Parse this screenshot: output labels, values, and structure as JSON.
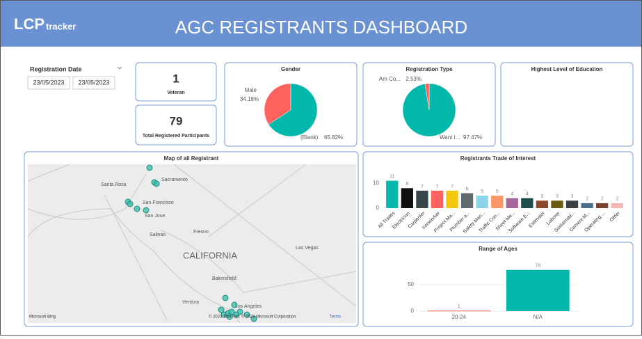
{
  "header": {
    "logo_main": "LCP",
    "logo_sub": "tracker",
    "title": "AGC REGISTRANTS DASHBOARD"
  },
  "filter": {
    "label": "Registration Date",
    "start": "23/05/2023",
    "end": "23/05/2023"
  },
  "cards": [
    {
      "value": "1",
      "label": "Veteran"
    },
    {
      "value": "79",
      "label": "Total Registered Participants"
    }
  ],
  "education": {
    "title": "Highest Level of Education"
  },
  "map": {
    "title": "Map of all Registrant",
    "labels": [
      "Santa Rosa",
      "Sacramento",
      "San Francisco",
      "San Jose",
      "Fresno",
      "Salinas",
      "CALIFORNIA",
      "Las Vegas",
      "Bakersfield",
      "Ventura",
      "Los Angeles"
    ],
    "attribution": "Microsoft Bing",
    "copyright": "© 2023 TomTom, © 2023 Microsoft Corporation",
    "terms": "Terms"
  },
  "chart_data": [
    {
      "type": "pie",
      "title": "Gender",
      "categories": [
        "(Blank)",
        "Male"
      ],
      "values": [
        65.82,
        34.18
      ],
      "value_labels": [
        "65.82%",
        "34.18%"
      ],
      "colors": [
        "#01b8aa",
        "#fd625e"
      ]
    },
    {
      "type": "pie",
      "title": "Registration Type",
      "categories": [
        "Want I...",
        "Am Co..."
      ],
      "values": [
        97.47,
        2.53
      ],
      "value_labels": [
        "97.47%",
        "2.53%"
      ],
      "colors": [
        "#01b8aa",
        "#fd625e"
      ]
    },
    {
      "type": "bar",
      "title": "Registrants Trade of Interest",
      "categories": [
        "All Trades",
        "Electrician",
        "Carpenter",
        "Ironworker",
        "Project Ma...",
        "Plumber a...",
        "Safety Man...",
        "Traffic Con...",
        "Sheet Me...",
        "Software E...",
        "Estimator",
        "Laborer",
        "Sustainabl...",
        "Cement M...",
        "Operating ...",
        "Other"
      ],
      "values": [
        11,
        8,
        7,
        7,
        7,
        6,
        5,
        5,
        4,
        4,
        3,
        3,
        3,
        2,
        2,
        2
      ],
      "colors": [
        "#01b8aa",
        "#111111",
        "#374649",
        "#fd625e",
        "#f2c80f",
        "#5f6b6d",
        "#8ad4eb",
        "#fe9666",
        "#a66999",
        "#1c4e4f",
        "#8a4a2b",
        "#6b5a10",
        "#3a3f42",
        "#4a6f8a",
        "#7b3f2f",
        "#f4b5b5"
      ],
      "ylim": [
        0,
        12
      ],
      "yticks": [
        0,
        10
      ]
    },
    {
      "type": "bar",
      "title": "Range of Ages",
      "categories": [
        "20-24",
        "N/A"
      ],
      "values": [
        1,
        78
      ],
      "colors": [
        "#fd625e",
        "#01b8aa"
      ],
      "ylim": [
        0,
        85
      ],
      "yticks": [
        0,
        50
      ],
      "grid": true
    }
  ]
}
